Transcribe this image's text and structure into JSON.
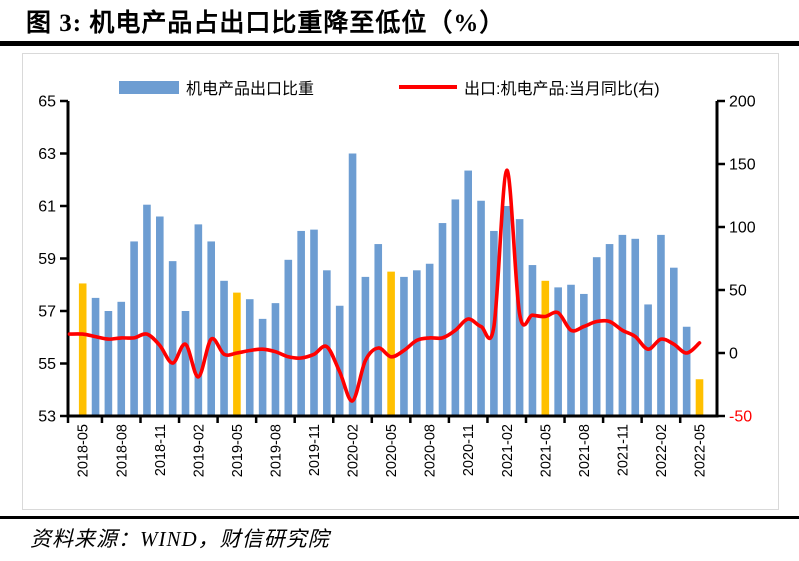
{
  "page": {
    "title": "图 3:  机电产品占出口比重降至低位（%）",
    "source": "资料来源：WIND，财信研究院"
  },
  "legend": {
    "bar_label": "机电产品出口比重",
    "line_label": "出口:机电产品:当月同比(右)"
  },
  "colors": {
    "bar": "#6d9dd2",
    "bar_highlight": "#ffc000",
    "line": "#ff0000",
    "axis": "#000000",
    "negative_tick_label": "#ff0000",
    "frame": "#d9d9d9"
  },
  "chart_data": {
    "type": "bar",
    "subtype": "bar+line combo, dual axis",
    "title": "机电产品占出口比重降至低位（%）",
    "xlabel": "",
    "ylabel_left": "机电产品出口比重",
    "ylabel_right": "出口:机电产品:当月同比",
    "grid": false,
    "legend_position": "top",
    "categories": [
      "2018-05",
      "2018-06",
      "2018-07",
      "2018-08",
      "2018-09",
      "2018-10",
      "2018-11",
      "2018-12",
      "2019-01",
      "2019-02",
      "2019-03",
      "2019-04",
      "2019-05",
      "2019-06",
      "2019-07",
      "2019-08",
      "2019-09",
      "2019-10",
      "2019-11",
      "2019-12",
      "2020-01",
      "2020-02",
      "2020-03",
      "2020-04",
      "2020-05",
      "2020-06",
      "2020-07",
      "2020-08",
      "2020-09",
      "2020-10",
      "2020-11",
      "2020-12",
      "2021-01",
      "2021-02",
      "2021-03",
      "2021-04",
      "2021-05",
      "2021-06",
      "2021-07",
      "2021-08",
      "2021-09",
      "2021-10",
      "2021-11",
      "2021-12",
      "2022-01",
      "2022-02",
      "2022-03",
      "2022-04",
      "2022-05"
    ],
    "series": [
      {
        "name": "机电产品出口比重",
        "type": "bar",
        "axis": "left",
        "values": [
          58.05,
          57.5,
          57.0,
          57.35,
          59.65,
          61.05,
          60.6,
          58.9,
          57.0,
          60.3,
          59.65,
          58.15,
          57.7,
          57.45,
          56.7,
          57.3,
          58.95,
          60.05,
          60.1,
          58.55,
          57.2,
          63.0,
          58.3,
          59.55,
          58.5,
          58.3,
          58.55,
          58.8,
          60.35,
          61.25,
          62.35,
          61.2,
          60.05,
          61.0,
          60.5,
          58.75,
          58.15,
          57.9,
          58.0,
          57.65,
          59.05,
          59.55,
          59.9,
          59.75,
          57.25,
          59.9,
          58.65,
          56.4,
          54.4
        ]
      },
      {
        "name": "出口:机电产品:当月同比(右)",
        "type": "line",
        "axis": "right",
        "values": [
          15,
          13,
          11,
          12,
          12,
          15,
          6,
          -8,
          7,
          -19,
          11,
          -1,
          0,
          2,
          3,
          1,
          -3,
          -4,
          -1,
          5,
          -15,
          -38,
          -6,
          4,
          -3,
          2,
          10,
          12,
          12,
          18,
          27,
          21,
          21,
          145,
          31,
          30,
          29,
          32,
          18,
          21,
          25,
          25,
          18,
          13,
          3,
          11,
          7,
          0,
          8
        ]
      }
    ],
    "highlighted_bars": [
      "2018-05",
      "2019-05",
      "2020-05",
      "2021-05",
      "2022-05"
    ],
    "x_tick_labels": [
      "2018-05",
      "2018-08",
      "2018-11",
      "2019-02",
      "2019-05",
      "2019-08",
      "2019-11",
      "2020-02",
      "2020-05",
      "2020-08",
      "2020-11",
      "2021-02",
      "2021-05",
      "2021-08",
      "2021-11",
      "2022-02",
      "2022-05"
    ],
    "left_axis": {
      "min": 53,
      "max": 65,
      "ticks": [
        65,
        63,
        61,
        59,
        57,
        55,
        53
      ]
    },
    "right_axis": {
      "min": -50,
      "max": 200,
      "ticks": [
        200,
        150,
        100,
        50,
        0,
        -50
      ]
    }
  }
}
